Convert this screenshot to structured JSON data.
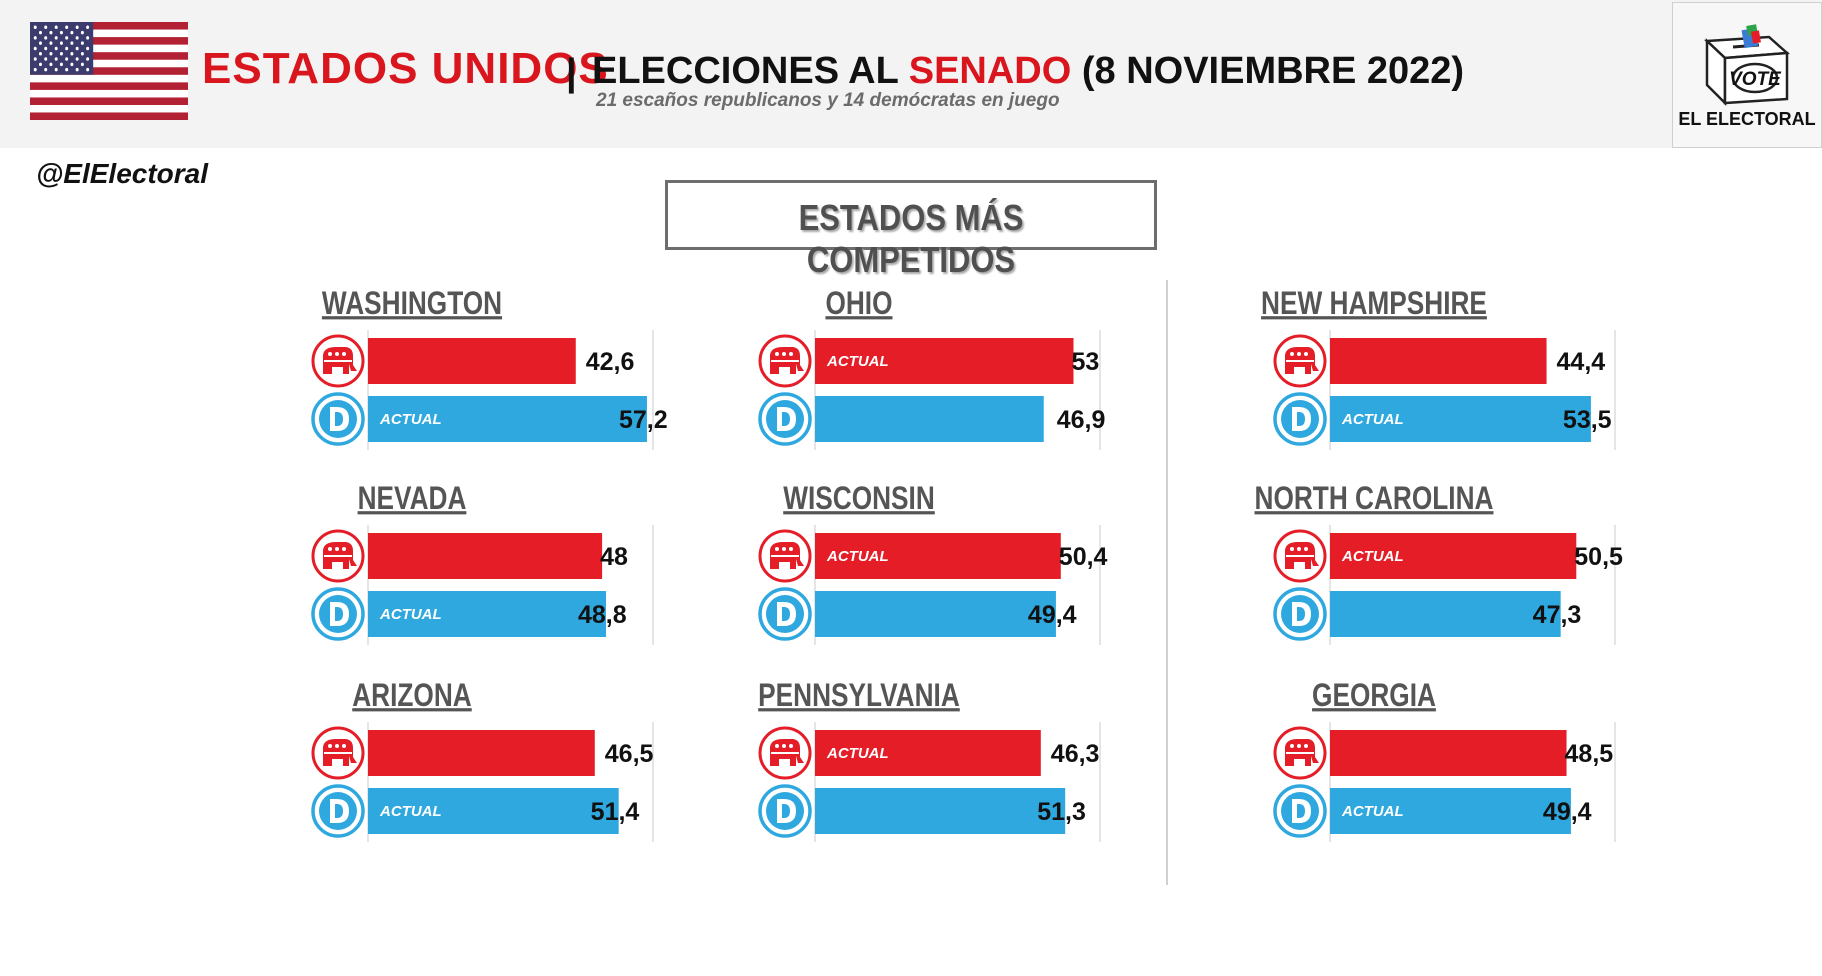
{
  "header": {
    "country": "ESTADOS UNIDOS",
    "separator": "|",
    "title_prefix": "ELECCIONES AL",
    "title_highlight": "SENADO",
    "title_suffix": "(8 NOVIEMBRE 2022)",
    "subtitle": "21 escaños republicanos y 14 demócratas  en juego"
  },
  "logo": {
    "ballot_text": "VOTE",
    "name": "EL ELECTORAL"
  },
  "handle": "@ElElectoral",
  "section_title": "ESTADOS MÁS COMPETIDOS",
  "colors": {
    "republican": "#e41d26",
    "democrat": "#2ea8df",
    "header_red": "#d9161e"
  },
  "icons": {
    "republican": "republican-elephant-icon",
    "democrat": "democrat-d-icon"
  },
  "chart_data": {
    "type": "bar",
    "incumbent_label": "ACTUAL",
    "series_names": [
      "Republicano",
      "Demócrata"
    ],
    "states": [
      {
        "name": "WASHINGTON",
        "rep": 42.6,
        "dem": 57.2,
        "rep_label": "42,6",
        "dem_label": "57,2",
        "incumbent": "dem"
      },
      {
        "name": "OHIO",
        "rep": 53,
        "dem": 46.9,
        "rep_label": "53",
        "dem_label": "46,9",
        "incumbent": "rep"
      },
      {
        "name": "NEW HAMPSHIRE",
        "rep": 44.4,
        "dem": 53.5,
        "rep_label": "44,4",
        "dem_label": "53,5",
        "incumbent": "dem"
      },
      {
        "name": "NEVADA",
        "rep": 48,
        "dem": 48.8,
        "rep_label": "48",
        "dem_label": "48,8",
        "incumbent": "dem"
      },
      {
        "name": "WISCONSIN",
        "rep": 50.4,
        "dem": 49.4,
        "rep_label": "50,4",
        "dem_label": "49,4",
        "incumbent": "rep"
      },
      {
        "name": "NORTH CAROLINA",
        "rep": 50.5,
        "dem": 47.3,
        "rep_label": "50,5",
        "dem_label": "47,3",
        "incumbent": "rep"
      },
      {
        "name": "ARIZONA",
        "rep": 46.5,
        "dem": 51.4,
        "rep_label": "46,5",
        "dem_label": "51,4",
        "incumbent": "dem"
      },
      {
        "name": "PENNSYLVANIA",
        "rep": 46.3,
        "dem": 51.3,
        "rep_label": "46,3",
        "dem_label": "51,3",
        "incumbent": "rep"
      },
      {
        "name": "GEORGIA",
        "rep": 48.5,
        "dem": 49.4,
        "rep_label": "48,5",
        "dem_label": "49,4",
        "incumbent": "dem"
      }
    ]
  }
}
